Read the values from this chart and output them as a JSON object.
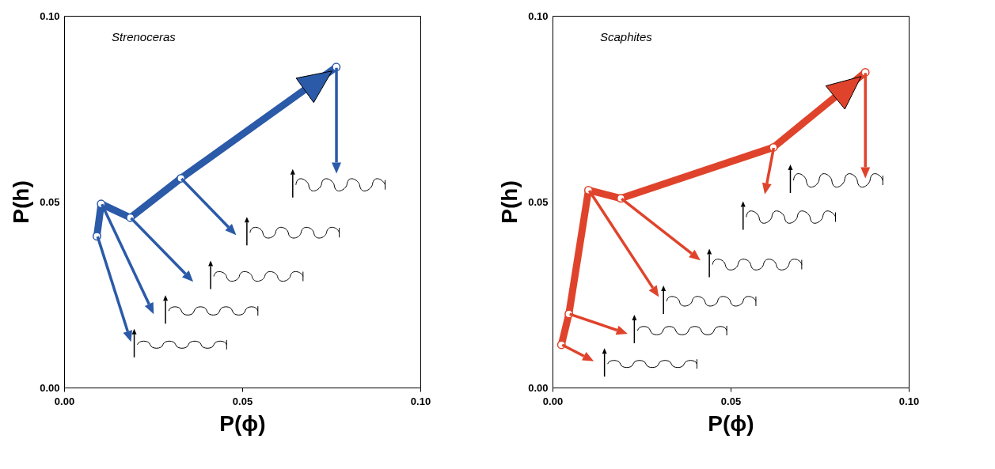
{
  "chart_data": [
    {
      "type": "line",
      "title": "Strenoceras",
      "xlabel": "P(ϕ)",
      "ylabel": "P(h)",
      "x": [
        0.0092,
        0.0104,
        0.0186,
        0.0328,
        0.0764
      ],
      "series": [
        {
          "color": "#2b5aa8",
          "values": [
            0.0407,
            0.0494,
            0.0457,
            0.0563,
            0.0862
          ]
        }
      ],
      "xlim": [
        0,
        0.1
      ],
      "ylim": [
        0,
        0.1
      ],
      "xticks": [
        {
          "value": 0,
          "label": "0.00"
        },
        {
          "value": 0.05,
          "label": "0.05"
        },
        {
          "value": 0.1,
          "label": "0.10"
        }
      ],
      "yticks": [
        {
          "value": 0,
          "label": "0.00"
        },
        {
          "value": 0.05,
          "label": "0.05"
        },
        {
          "value": 0.1,
          "label": "0.10"
        }
      ],
      "marker": "circle",
      "grid": false
    },
    {
      "type": "line",
      "title": "Scaphites",
      "xlabel": "P(ϕ)",
      "ylabel": "P(h)",
      "x": [
        0.0025,
        0.0046,
        0.0101,
        0.0192,
        0.062,
        0.0878
      ],
      "series": [
        {
          "color": "#e0432b",
          "values": [
            0.0115,
            0.0198,
            0.0531,
            0.0509,
            0.0646,
            0.0848
          ]
        }
      ],
      "xlim": [
        0,
        0.1
      ],
      "ylim": [
        0,
        0.1
      ],
      "xticks": [
        {
          "value": 0,
          "label": "0.00"
        },
        {
          "value": 0.05,
          "label": "0.05"
        },
        {
          "value": 0.1,
          "label": "0.10"
        }
      ],
      "yticks": [
        {
          "value": 0,
          "label": "0.00"
        },
        {
          "value": 0.05,
          "label": "0.05"
        },
        {
          "value": 0.1,
          "label": "0.10"
        }
      ],
      "marker": "circle",
      "grid": false
    }
  ]
}
